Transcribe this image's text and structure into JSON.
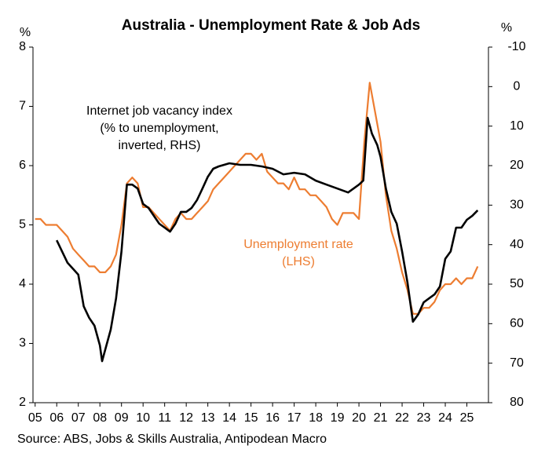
{
  "chart_data": {
    "type": "line",
    "title": "Australia - Unemployment Rate & Job Ads",
    "ylabel": "%",
    "y2label": "%",
    "source": "Source: ABS, Jobs & Skills Australia, Antipodean Macro",
    "xlim": [
      2004.9,
      2026.0
    ],
    "xticks": [
      {
        "value": 2005,
        "label": "05"
      },
      {
        "value": 2006,
        "label": "06"
      },
      {
        "value": 2007,
        "label": "07"
      },
      {
        "value": 2008,
        "label": "08"
      },
      {
        "value": 2009,
        "label": "09"
      },
      {
        "value": 2010,
        "label": "10"
      },
      {
        "value": 2011,
        "label": "11"
      },
      {
        "value": 2012,
        "label": "12"
      },
      {
        "value": 2013,
        "label": "13"
      },
      {
        "value": 2014,
        "label": "14"
      },
      {
        "value": 2015,
        "label": "15"
      },
      {
        "value": 2016,
        "label": "16"
      },
      {
        "value": 2017,
        "label": "17"
      },
      {
        "value": 2018,
        "label": "18"
      },
      {
        "value": 2019,
        "label": "19"
      },
      {
        "value": 2020,
        "label": "20"
      },
      {
        "value": 2021,
        "label": "21"
      },
      {
        "value": 2022,
        "label": "22"
      },
      {
        "value": 2023,
        "label": "23"
      },
      {
        "value": 2024,
        "label": "24"
      },
      {
        "value": 2025,
        "label": "25"
      }
    ],
    "ylim": [
      2,
      8
    ],
    "yticks": [
      2,
      3,
      4,
      5,
      6,
      7,
      8
    ],
    "y2lim": [
      -10,
      80
    ],
    "y2_inverted": true,
    "y2ticks": [
      -10,
      0,
      10,
      20,
      30,
      40,
      50,
      60,
      70,
      80
    ],
    "series": [
      {
        "label": [
          "Unemployment rate",
          "(LHS)"
        ],
        "color": "#ed7d31",
        "axis": "y",
        "x": [
          2005.0,
          2005.25,
          2005.5,
          2005.75,
          2006.0,
          2006.25,
          2006.5,
          2006.75,
          2007.0,
          2007.25,
          2007.5,
          2007.75,
          2008.0,
          2008.25,
          2008.5,
          2008.75,
          2009.0,
          2009.25,
          2009.5,
          2009.75,
          2010.0,
          2010.25,
          2010.5,
          2010.75,
          2011.0,
          2011.25,
          2011.5,
          2011.75,
          2012.0,
          2012.25,
          2012.5,
          2012.75,
          2013.0,
          2013.25,
          2013.5,
          2013.75,
          2014.0,
          2014.25,
          2014.5,
          2014.75,
          2015.0,
          2015.25,
          2015.5,
          2015.75,
          2016.0,
          2016.25,
          2016.5,
          2016.75,
          2017.0,
          2017.25,
          2017.5,
          2017.75,
          2018.0,
          2018.25,
          2018.5,
          2018.75,
          2019.0,
          2019.25,
          2019.5,
          2019.75,
          2020.0,
          2020.25,
          2020.5,
          2020.75,
          2021.0,
          2021.25,
          2021.5,
          2021.75,
          2022.0,
          2022.25,
          2022.5,
          2022.75,
          2023.0,
          2023.25,
          2023.5,
          2023.75,
          2024.0,
          2024.25,
          2024.5,
          2024.75,
          2025.0,
          2025.25,
          2025.5
        ],
        "values": [
          5.1,
          5.1,
          5.0,
          5.0,
          5.0,
          4.9,
          4.8,
          4.6,
          4.5,
          4.4,
          4.3,
          4.3,
          4.2,
          4.2,
          4.3,
          4.5,
          5.0,
          5.7,
          5.8,
          5.7,
          5.3,
          5.3,
          5.2,
          5.1,
          5.0,
          4.9,
          5.1,
          5.2,
          5.1,
          5.1,
          5.2,
          5.3,
          5.4,
          5.6,
          5.7,
          5.8,
          5.9,
          6.0,
          6.1,
          6.2,
          6.2,
          6.1,
          6.2,
          5.9,
          5.8,
          5.7,
          5.7,
          5.6,
          5.8,
          5.6,
          5.6,
          5.5,
          5.5,
          5.4,
          5.3,
          5.1,
          5.0,
          5.2,
          5.2,
          5.2,
          5.1,
          6.4,
          7.4,
          6.9,
          6.4,
          5.5,
          4.9,
          4.6,
          4.2,
          3.9,
          3.5,
          3.5,
          3.6,
          3.6,
          3.7,
          3.9,
          4.0,
          4.0,
          4.1,
          4.0,
          4.1,
          4.1,
          4.3
        ]
      },
      {
        "label": [
          "Internet job vacancy index",
          "(% to unemployment,",
          "inverted, RHS)"
        ],
        "color": "#000000",
        "axis": "y2",
        "x": [
          2006.0,
          2006.5,
          2007.0,
          2007.25,
          2007.5,
          2007.75,
          2008.0,
          2008.1,
          2008.5,
          2008.75,
          2009.0,
          2009.25,
          2009.5,
          2009.75,
          2010.0,
          2010.25,
          2010.5,
          2010.75,
          2011.0,
          2011.25,
          2011.5,
          2011.75,
          2012.0,
          2012.25,
          2012.5,
          2012.75,
          2013.0,
          2013.25,
          2013.5,
          2013.75,
          2014.0,
          2014.5,
          2015.0,
          2015.5,
          2016.0,
          2016.5,
          2017.0,
          2017.5,
          2018.0,
          2018.5,
          2019.0,
          2019.5,
          2020.0,
          2020.2,
          2020.4,
          2020.6,
          2020.85,
          2021.0,
          2021.25,
          2021.5,
          2021.75,
          2022.0,
          2022.25,
          2022.5,
          2022.75,
          2023.0,
          2023.25,
          2023.5,
          2023.75,
          2024.0,
          2024.25,
          2024.5,
          2024.75,
          2025.0,
          2025.25,
          2025.5
        ],
        "values": [
          38.9,
          44.6,
          47.6,
          55.6,
          58.5,
          60.5,
          65.5,
          69.5,
          61.5,
          53.6,
          41.7,
          24.8,
          24.8,
          25.8,
          29.7,
          30.7,
          32.7,
          34.7,
          35.7,
          36.7,
          34.7,
          31.7,
          31.7,
          30.7,
          28.7,
          25.8,
          22.8,
          20.8,
          20.2,
          19.8,
          19.4,
          19.8,
          19.8,
          20.2,
          20.8,
          22.2,
          21.8,
          22.2,
          23.8,
          24.8,
          25.8,
          26.8,
          24.8,
          23.8,
          7.9,
          11.9,
          14.8,
          17.8,
          25.8,
          31.7,
          34.7,
          41.7,
          49.6,
          59.5,
          57.6,
          54.6,
          53.6,
          52.6,
          50.6,
          43.6,
          41.7,
          35.7,
          35.7,
          33.7,
          32.7,
          31.3
        ]
      }
    ]
  }
}
